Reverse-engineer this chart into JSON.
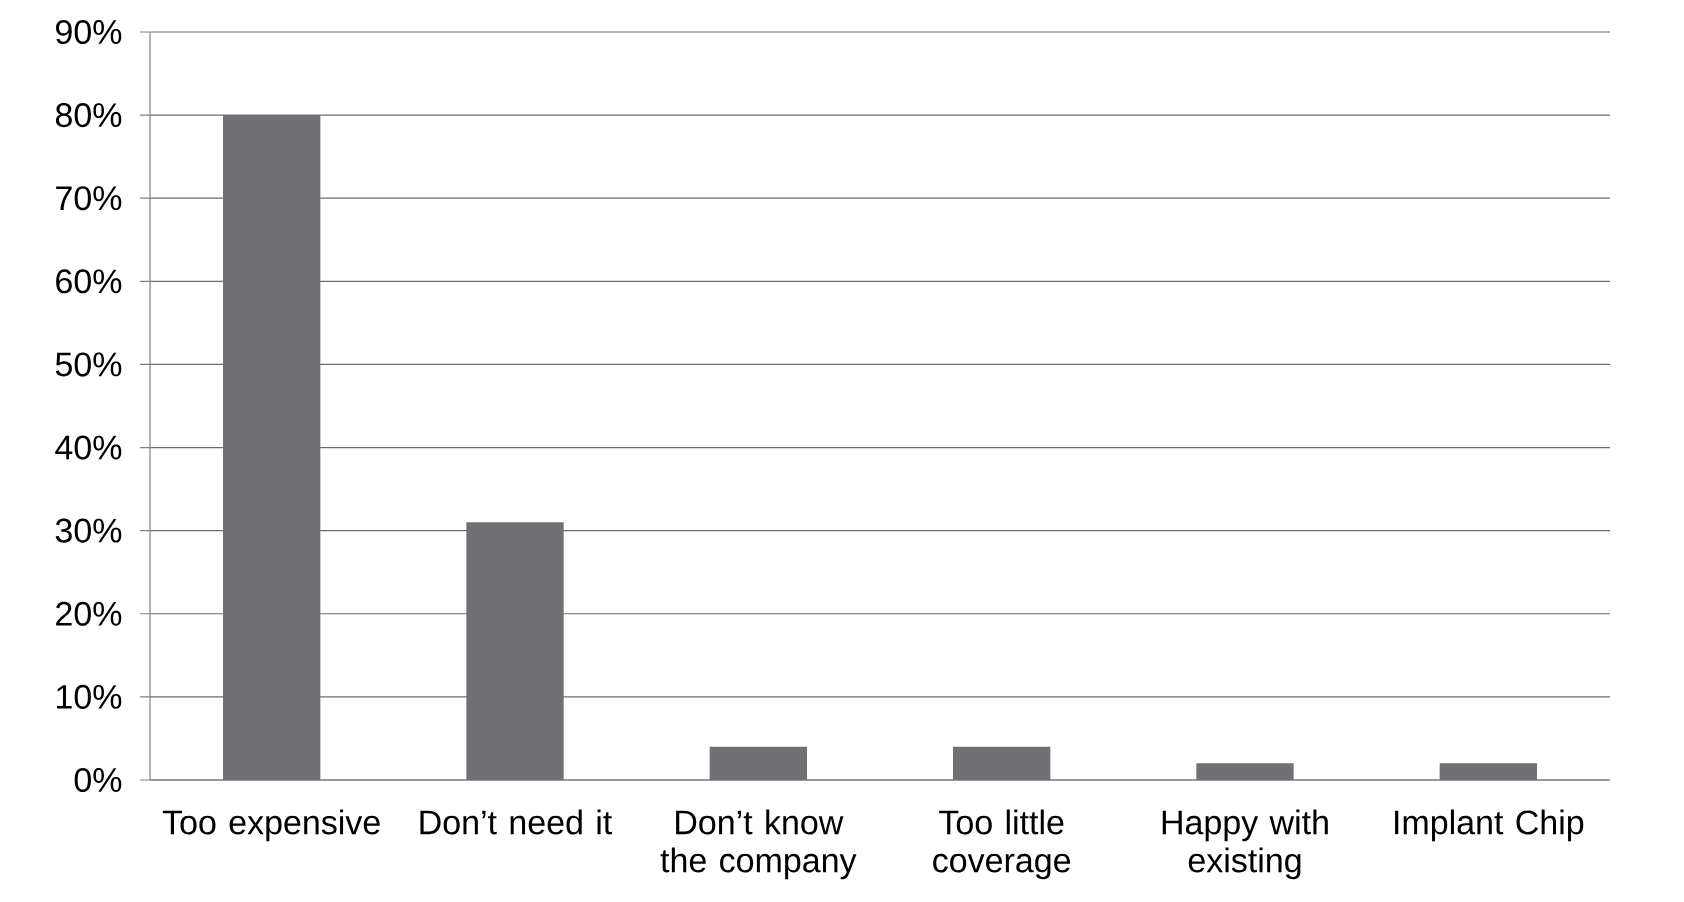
{
  "chart_data": {
    "type": "bar",
    "categories": [
      "Too expensive",
      "Don’t need it",
      "Don’t know the company",
      "Too little coverage",
      "Happy with existing",
      "Implant Chip"
    ],
    "values": [
      80,
      31,
      4,
      4,
      2,
      2
    ],
    "color": "#717074",
    "ylim": [
      0,
      90
    ],
    "yticks": [
      {
        "value": 0,
        "label": "0%"
      },
      {
        "value": 10,
        "label": "10%"
      },
      {
        "value": 20,
        "label": "20%"
      },
      {
        "value": 30,
        "label": "30%"
      },
      {
        "value": 40,
        "label": "40%"
      },
      {
        "value": 50,
        "label": "50%"
      },
      {
        "value": 60,
        "label": "60%"
      },
      {
        "value": 70,
        "label": "70%"
      },
      {
        "value": 80,
        "label": "80%"
      },
      {
        "value": 90,
        "label": "90%"
      }
    ],
    "grid": "y"
  }
}
